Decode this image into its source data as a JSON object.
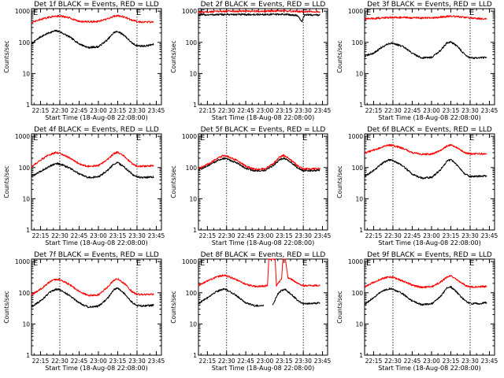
{
  "chart_data": [
    {
      "type": "line",
      "title": "Det 1f BLACK = Events, RED = LLD",
      "xlabel": "Start Time (18-Aug-08 22:08:00)",
      "ylabel": "Counts/sec",
      "x_ticks": [
        "22:15",
        "22:30",
        "22:45",
        "23:00",
        "23:15",
        "23:30",
        "23:45"
      ],
      "y_ticks": [
        "1",
        "10",
        "100",
        "1000"
      ],
      "ylim": [
        1,
        1200
      ],
      "log_y": true,
      "vlines": [
        "22:30",
        "23:30"
      ],
      "markers": [
        "E",
        "E"
      ],
      "series": [
        {
          "color": "#000000",
          "x": [
            "22:08",
            "22:15",
            "22:22",
            "22:27",
            "22:30",
            "22:38",
            "22:45",
            "22:52",
            "23:00",
            "23:07",
            "23:12",
            "23:15",
            "23:20",
            "23:26",
            "23:30",
            "23:36",
            "23:43"
          ],
          "values": [
            90,
            150,
            205,
            235,
            220,
            145,
            90,
            68,
            72,
            120,
            205,
            225,
            170,
            95,
            78,
            76,
            86
          ]
        },
        {
          "color": "#ff0000",
          "x": [
            "22:08",
            "22:15",
            "22:22",
            "22:27",
            "22:30",
            "22:38",
            "22:45",
            "22:52",
            "23:00",
            "23:07",
            "23:12",
            "23:15",
            "23:20",
            "23:26",
            "23:30",
            "23:36",
            "23:43"
          ],
          "values": [
            420,
            540,
            640,
            700,
            700,
            600,
            470,
            455,
            465,
            560,
            690,
            720,
            650,
            520,
            460,
            450,
            450
          ]
        }
      ]
    },
    {
      "type": "line",
      "title": "Det 2f BLACK = Events, RED = LLD",
      "xlabel": "Start Time (18-Aug-08 22:08:00)",
      "ylabel": "Counts/sec",
      "x_ticks": [
        "22:15",
        "22:30",
        "22:45",
        "23:00",
        "23:15",
        "23:30",
        "23:45"
      ],
      "y_ticks": [
        "1",
        "10",
        "100",
        "1000"
      ],
      "ylim": [
        1,
        1200
      ],
      "log_y": true,
      "vlines": [
        "22:30",
        "23:30"
      ],
      "markers": [
        "E",
        "E"
      ],
      "series": [
        {
          "color": "#000000",
          "x": [
            "22:08",
            "22:20",
            "22:30",
            "22:45",
            "23:00",
            "23:15",
            "23:25",
            "23:29",
            "23:31",
            "23:33",
            "23:43"
          ],
          "values": [
            760,
            770,
            780,
            775,
            780,
            790,
            740,
            460,
            770,
            760,
            750
          ]
        },
        {
          "color": "#ff0000",
          "x": [
            "22:08",
            "22:20",
            "22:30",
            "22:45",
            "23:00",
            "23:15",
            "23:30",
            "23:43"
          ],
          "values": [
            920,
            970,
            1000,
            990,
            1000,
            1010,
            960,
            970
          ]
        }
      ]
    },
    {
      "type": "line",
      "title": "Det 3f BLACK = Events, RED = LLD",
      "xlabel": "Start Time (18-Aug-08 22:08:00)",
      "ylabel": "Counts/sec",
      "x_ticks": [
        "22:15",
        "22:30",
        "22:45",
        "23:00",
        "23:15",
        "23:30",
        "23:45"
      ],
      "y_ticks": [
        "1",
        "10",
        "100",
        "1000"
      ],
      "ylim": [
        1,
        1200
      ],
      "log_y": true,
      "vlines": [
        "22:30",
        "23:30"
      ],
      "markers": [
        "E",
        "E"
      ],
      "series": [
        {
          "color": "#000000",
          "x": [
            "22:08",
            "22:15",
            "22:22",
            "22:27",
            "22:30",
            "22:38",
            "22:45",
            "22:52",
            "23:00",
            "23:07",
            "23:12",
            "23:15",
            "23:20",
            "23:26",
            "23:30",
            "23:36",
            "23:43"
          ],
          "values": [
            36,
            45,
            72,
            92,
            95,
            72,
            45,
            32,
            33,
            55,
            95,
            105,
            75,
            40,
            32,
            31,
            33
          ]
        },
        {
          "color": "#ff0000",
          "x": [
            "22:08",
            "22:20",
            "22:30",
            "22:45",
            "23:00",
            "23:15",
            "23:25",
            "23:30",
            "23:43"
          ],
          "values": [
            560,
            600,
            640,
            610,
            600,
            690,
            640,
            600,
            560
          ]
        }
      ]
    },
    {
      "type": "line",
      "title": "Det 4f BLACK = Events, RED = LLD",
      "xlabel": "Start Time (18-Aug-08 22:08:00)",
      "ylabel": "Counts/sec",
      "x_ticks": [
        "22:15",
        "22:30",
        "22:45",
        "23:00",
        "23:15",
        "23:30",
        "23:45"
      ],
      "y_ticks": [
        "1",
        "10",
        "100",
        "1000"
      ],
      "ylim": [
        1,
        1200
      ],
      "log_y": true,
      "vlines": [
        "22:30",
        "23:30"
      ],
      "markers": [
        "E",
        "E"
      ],
      "series": [
        {
          "color": "#000000",
          "x": [
            "22:08",
            "22:15",
            "22:22",
            "22:27",
            "22:30",
            "22:38",
            "22:45",
            "22:52",
            "23:00",
            "23:07",
            "23:12",
            "23:15",
            "23:20",
            "23:26",
            "23:30",
            "23:36",
            "23:43"
          ],
          "values": [
            52,
            75,
            110,
            135,
            130,
            95,
            62,
            48,
            50,
            80,
            130,
            145,
            105,
            62,
            50,
            48,
            50
          ]
        },
        {
          "color": "#ff0000",
          "x": [
            "22:08",
            "22:15",
            "22:22",
            "22:27",
            "22:30",
            "22:38",
            "22:45",
            "22:52",
            "23:00",
            "23:07",
            "23:12",
            "23:15",
            "23:20",
            "23:26",
            "23:30",
            "23:36",
            "23:43"
          ],
          "values": [
            105,
            175,
            260,
            300,
            290,
            200,
            130,
            110,
            115,
            180,
            280,
            310,
            230,
            135,
            110,
            110,
            115
          ]
        }
      ]
    },
    {
      "type": "line",
      "title": "Det 5f BLACK = Events, RED = LLD",
      "xlabel": "Start Time (18-Aug-08 22:08:00)",
      "ylabel": "Counts/sec",
      "x_ticks": [
        "22:15",
        "22:30",
        "22:45",
        "23:00",
        "23:15",
        "23:30",
        "23:45"
      ],
      "y_ticks": [
        "1",
        "10",
        "100",
        "1000"
      ],
      "ylim": [
        1,
        1200
      ],
      "log_y": true,
      "vlines": [
        "22:30",
        "23:30"
      ],
      "markers": [
        "E",
        "E"
      ],
      "series": [
        {
          "color": "#000000",
          "x": [
            "22:08",
            "22:15",
            "22:22",
            "22:27",
            "22:30",
            "22:38",
            "22:45",
            "22:52",
            "23:00",
            "23:07",
            "23:12",
            "23:15",
            "23:20",
            "23:26",
            "23:30",
            "23:36",
            "23:43"
          ],
          "values": [
            85,
            110,
            160,
            195,
            190,
            140,
            95,
            78,
            80,
            120,
            185,
            200,
            150,
            95,
            80,
            80,
            82
          ]
        },
        {
          "color": "#ff0000",
          "x": [
            "22:08",
            "22:15",
            "22:22",
            "22:27",
            "22:30",
            "22:38",
            "22:45",
            "22:52",
            "23:00",
            "23:07",
            "23:12",
            "23:15",
            "23:20",
            "23:26",
            "23:30",
            "23:36",
            "23:43"
          ],
          "values": [
            95,
            125,
            185,
            240,
            235,
            170,
            110,
            88,
            90,
            140,
            225,
            245,
            180,
            110,
            90,
            90,
            92
          ]
        }
      ]
    },
    {
      "type": "line",
      "title": "Det 6f BLACK = Events, RED = LLD",
      "xlabel": "Start Time (18-Aug-08 22:08:00)",
      "ylabel": "Counts/sec",
      "x_ticks": [
        "22:15",
        "22:30",
        "22:45",
        "23:00",
        "23:15",
        "23:30",
        "23:45"
      ],
      "y_ticks": [
        "1",
        "10",
        "100",
        "1000"
      ],
      "ylim": [
        1,
        1200
      ],
      "log_y": true,
      "vlines": [
        "22:30",
        "23:30"
      ],
      "markers": [
        "E",
        "E"
      ],
      "series": [
        {
          "color": "#000000",
          "x": [
            "22:08",
            "22:15",
            "22:22",
            "22:27",
            "22:30",
            "22:38",
            "22:45",
            "22:52",
            "23:00",
            "23:07",
            "23:12",
            "23:15",
            "23:20",
            "23:26",
            "23:30",
            "23:36",
            "23:43"
          ],
          "values": [
            52,
            80,
            140,
            175,
            170,
            110,
            62,
            46,
            48,
            85,
            160,
            180,
            120,
            62,
            52,
            52,
            54
          ]
        },
        {
          "color": "#ff0000",
          "x": [
            "22:08",
            "22:15",
            "22:22",
            "22:27",
            "22:30",
            "22:38",
            "22:45",
            "22:52",
            "23:00",
            "23:07",
            "23:12",
            "23:15",
            "23:20",
            "23:26",
            "23:30",
            "23:36",
            "23:43"
          ],
          "values": [
            290,
            360,
            460,
            520,
            510,
            410,
            300,
            265,
            270,
            350,
            490,
            540,
            430,
            300,
            275,
            275,
            280
          ]
        }
      ]
    },
    {
      "type": "line",
      "title": "Det 7f BLACK = Events, RED = LLD",
      "xlabel": "Start Time (18-Aug-08 22:08:00)",
      "ylabel": "Counts/sec",
      "x_ticks": [
        "22:15",
        "22:30",
        "22:45",
        "23:00",
        "23:15",
        "23:30",
        "23:45"
      ],
      "y_ticks": [
        "1",
        "10",
        "100",
        "1000"
      ],
      "ylim": [
        1,
        1200
      ],
      "log_y": true,
      "vlines": [
        "22:30",
        "23:30"
      ],
      "markers": [
        "E",
        "E"
      ],
      "series": [
        {
          "color": "#000000",
          "x": [
            "22:08",
            "22:15",
            "22:22",
            "22:27",
            "22:30",
            "22:38",
            "22:45",
            "22:52",
            "23:00",
            "23:07",
            "23:12",
            "23:15",
            "23:20",
            "23:26",
            "23:30",
            "23:36",
            "23:43"
          ],
          "values": [
            36,
            55,
            100,
            130,
            125,
            80,
            48,
            35,
            37,
            65,
            125,
            140,
            95,
            50,
            38,
            38,
            40
          ]
        },
        {
          "color": "#ff0000",
          "x": [
            "22:08",
            "22:15",
            "22:22",
            "22:27",
            "22:30",
            "22:38",
            "22:45",
            "22:52",
            "23:00",
            "23:07",
            "23:12",
            "23:15",
            "23:20",
            "23:26",
            "23:30",
            "23:36",
            "23:43"
          ],
          "values": [
            85,
            130,
            220,
            270,
            265,
            180,
            110,
            82,
            85,
            150,
            255,
            280,
            200,
            110,
            88,
            88,
            92
          ]
        }
      ]
    },
    {
      "type": "line",
      "title": "Det 8f BLACK = Events, RED = LLD",
      "xlabel": "Start Time (18-Aug-08 22:08:00)",
      "ylabel": "Counts/sec",
      "x_ticks": [
        "22:15",
        "22:30",
        "22:45",
        "23:00",
        "23:15",
        "23:30",
        "23:45"
      ],
      "y_ticks": [
        "1",
        "10",
        "100",
        "1000"
      ],
      "ylim": [
        1,
        1200
      ],
      "log_y": true,
      "vlines": [
        "22:30",
        "23:30"
      ],
      "markers": [
        "E",
        "E"
      ],
      "series": [
        {
          "color": "#000000",
          "x": [
            "22:08",
            "22:15",
            "22:22",
            "22:27",
            "22:30",
            "22:38",
            "22:45",
            "22:52",
            "22:59"
          ],
          "values": [
            45,
            70,
            110,
            130,
            125,
            80,
            48,
            38,
            40
          ]
        },
        {
          "color": "#000000",
          "x": [
            "23:06",
            "23:10",
            "23:13",
            "23:16",
            "23:20",
            "23:26",
            "23:30",
            "23:36",
            "23:43"
          ],
          "values": [
            40,
            90,
            120,
            125,
            95,
            55,
            45,
            45,
            48
          ]
        },
        {
          "color": "#ff0000",
          "x": [
            "22:08",
            "22:15",
            "22:22",
            "22:27",
            "22:30",
            "22:38",
            "22:45",
            "22:52",
            "23:00",
            "23:02",
            "23:03",
            "23:06",
            "23:08",
            "23:09",
            "23:13",
            "23:14",
            "23:16",
            "23:18",
            "23:20",
            "23:26",
            "23:30",
            "23:36",
            "23:43"
          ],
          "values": [
            170,
            240,
            320,
            360,
            350,
            260,
            190,
            160,
            165,
            170,
            1200,
            1200,
            1200,
            170,
            280,
            1200,
            1200,
            300,
            280,
            200,
            170,
            170,
            175
          ]
        }
      ]
    },
    {
      "type": "line",
      "title": "Det 9f BLACK = Events, RED = LLD",
      "xlabel": "Start Time (18-Aug-08 22:08:00)",
      "ylabel": "Counts/sec",
      "x_ticks": [
        "22:15",
        "22:30",
        "22:45",
        "23:00",
        "23:15",
        "23:30",
        "23:45"
      ],
      "y_ticks": [
        "1",
        "10",
        "100",
        "1000"
      ],
      "ylim": [
        1,
        1200
      ],
      "log_y": true,
      "vlines": [
        "22:30",
        "23:30"
      ],
      "markers": [
        "E",
        "E"
      ],
      "series": [
        {
          "color": "#000000",
          "x": [
            "22:08",
            "22:15",
            "22:22",
            "22:27",
            "22:30",
            "22:38",
            "22:45",
            "22:52",
            "23:00",
            "23:07",
            "23:12",
            "23:15",
            "23:20",
            "23:26",
            "23:30",
            "23:36",
            "23:43"
          ],
          "values": [
            42,
            70,
            115,
            135,
            130,
            90,
            55,
            42,
            44,
            75,
            140,
            155,
            100,
            55,
            45,
            45,
            48
          ]
        },
        {
          "color": "#ff0000",
          "x": [
            "22:08",
            "22:15",
            "22:22",
            "22:27",
            "22:30",
            "22:38",
            "22:45",
            "22:52",
            "23:00",
            "23:07",
            "23:12",
            "23:15",
            "23:20",
            "23:26",
            "23:30",
            "23:36",
            "23:43"
          ],
          "values": [
            150,
            220,
            290,
            320,
            310,
            235,
            175,
            150,
            155,
            220,
            320,
            350,
            260,
            175,
            155,
            155,
            160
          ]
        }
      ]
    }
  ]
}
